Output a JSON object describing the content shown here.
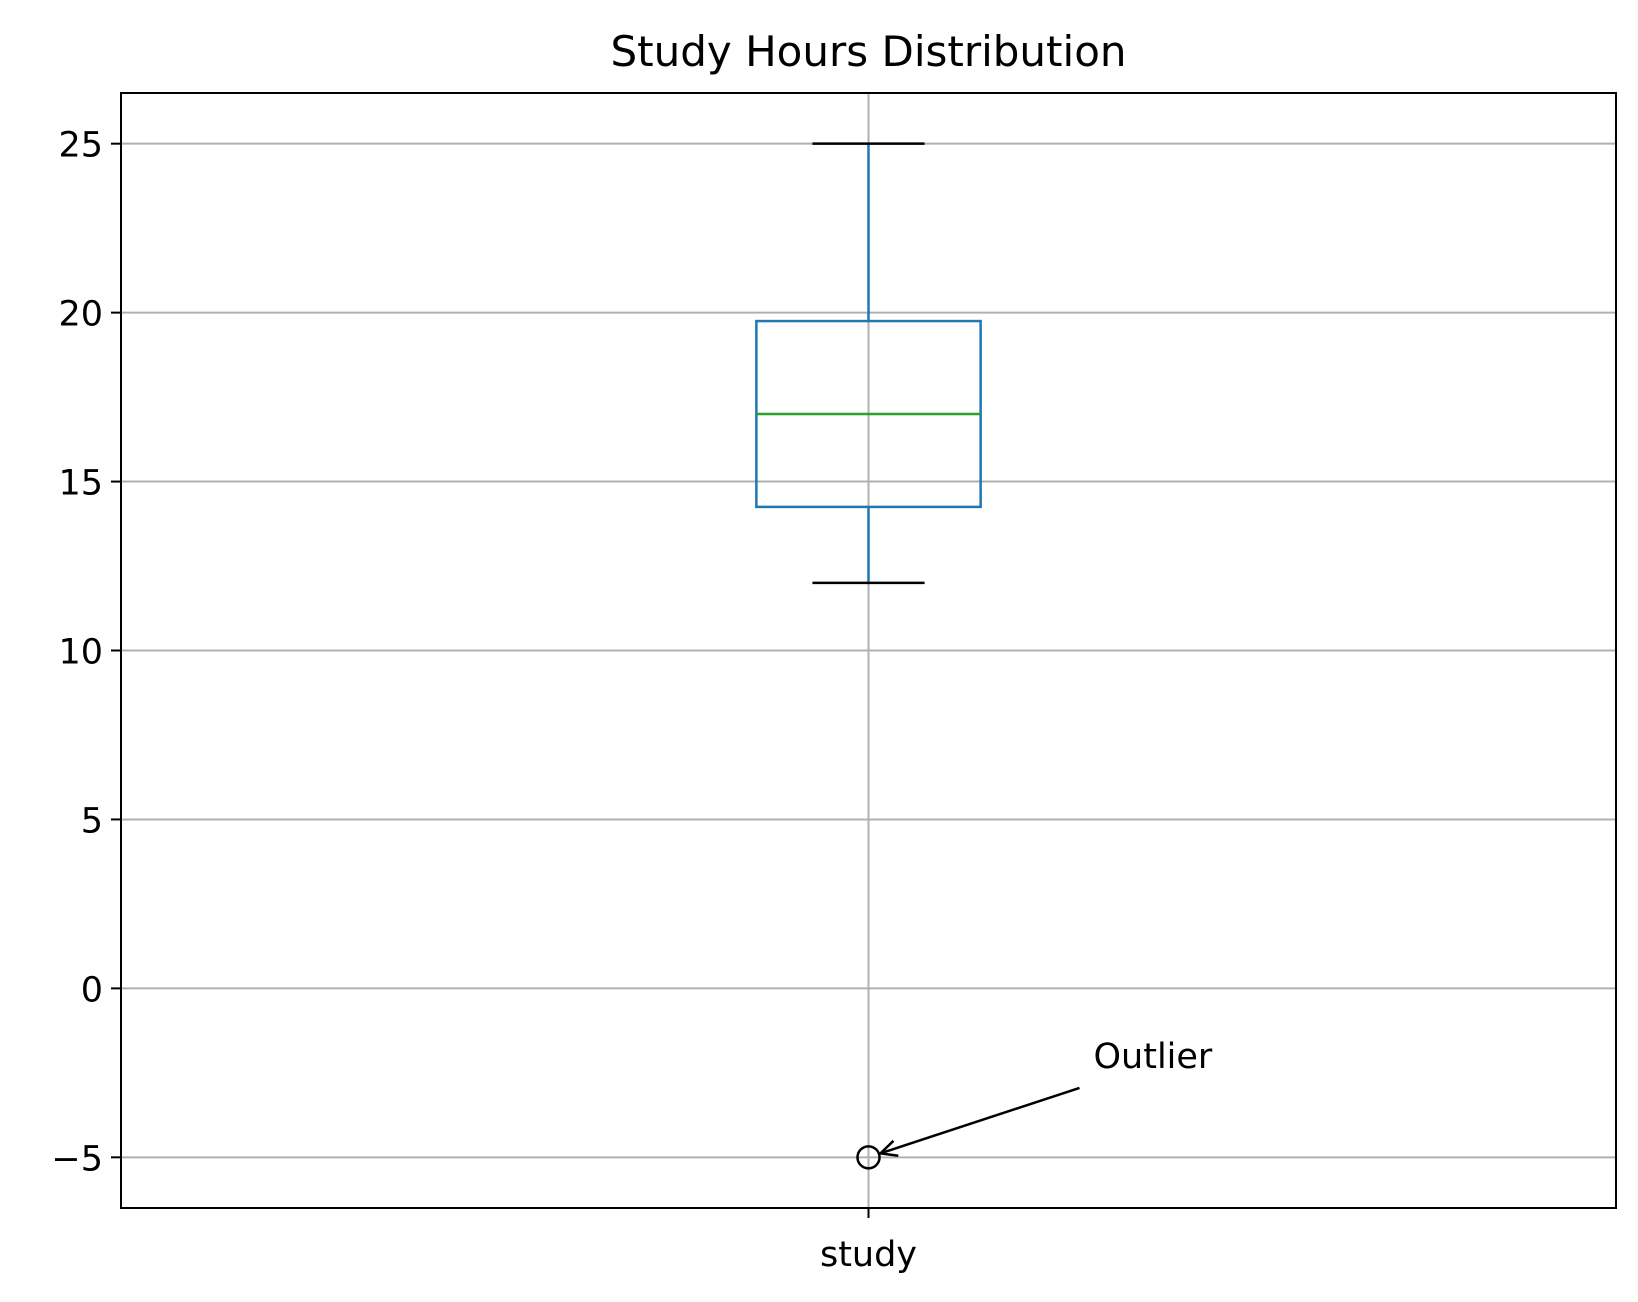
{
  "chart_data": {
    "type": "box",
    "title": "Study Hours Distribution",
    "xlabel": "",
    "ylabel": "",
    "categories": [
      "study"
    ],
    "boxes": [
      {
        "category": "study",
        "whisker_low": 12,
        "q1": 14.25,
        "median": 17,
        "q3": 19.75,
        "whisker_high": 25,
        "outliers": [
          -5
        ]
      }
    ],
    "yticks": [
      -5,
      0,
      5,
      10,
      15,
      20,
      25
    ],
    "ylim": [
      -6.5,
      26.5
    ],
    "grid": true,
    "annotations": [
      {
        "text": "Outlier",
        "target_category": "study",
        "target_y": -5,
        "text_y": -2
      }
    ],
    "colors": {
      "box": "#1f77b4",
      "median": "#2ca02c",
      "whisker_cap": "#000000",
      "grid": "#b0b0b0",
      "outlier": "#000000"
    }
  }
}
